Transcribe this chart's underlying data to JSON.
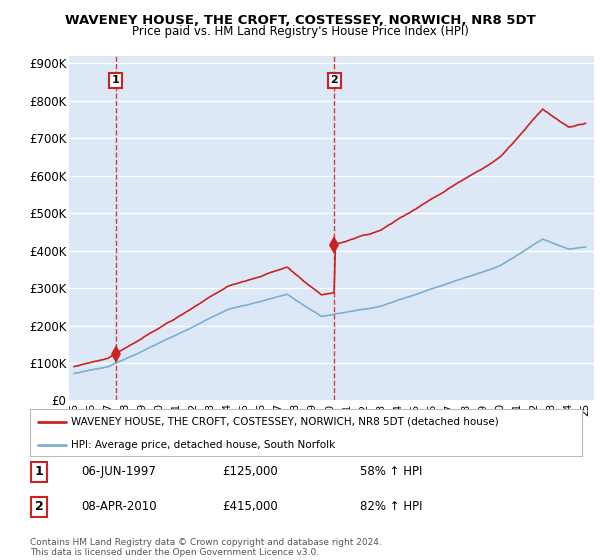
{
  "title": "WAVENEY HOUSE, THE CROFT, COSTESSEY, NORWICH, NR8 5DT",
  "subtitle": "Price paid vs. HM Land Registry's House Price Index (HPI)",
  "ylim": [
    0,
    900000
  ],
  "yticks": [
    0,
    100000,
    200000,
    300000,
    400000,
    500000,
    600000,
    700000,
    800000,
    900000
  ],
  "ytick_labels": [
    "£0",
    "£100K",
    "£200K",
    "£300K",
    "£400K",
    "£500K",
    "£600K",
    "£700K",
    "£800K",
    "£900K"
  ],
  "sale1_year": 1997.44,
  "sale1_price": 125000,
  "sale1_label": "1",
  "sale1_date": "06-JUN-1997",
  "sale2_year": 2010.27,
  "sale2_price": 415000,
  "sale2_label": "2",
  "sale2_date": "08-APR-2010",
  "hpi_color": "#7bafd4",
  "price_color": "#cc2222",
  "bg_color": "#dce8f5",
  "grid_color": "#ffffff",
  "legend_line1": "WAVENEY HOUSE, THE CROFT, COSTESSEY, NORWICH, NR8 5DT (detached house)",
  "legend_line2": "HPI: Average price, detached house, South Norfolk",
  "note1_label": "1",
  "note1_date": "06-JUN-1997",
  "note1_price": "£125,000",
  "note1_hpi": "58% ↑ HPI",
  "note2_label": "2",
  "note2_date": "08-APR-2010",
  "note2_price": "£415,000",
  "note2_hpi": "82% ↑ HPI",
  "copyright": "Contains HM Land Registry data © Crown copyright and database right 2024.\nThis data is licensed under the Open Government Licence v3.0."
}
